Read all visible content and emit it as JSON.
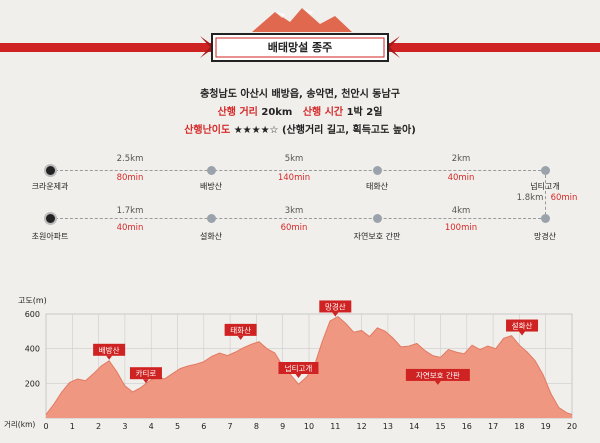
{
  "header": {
    "title": "배태망설 종주",
    "location": "충청남도 아산시 배방읍, 송악면, 천안시 동남구",
    "distance_label": "산행 거리",
    "distance_value": "20km",
    "time_label": "산행 시간",
    "time_value": "1박 2일",
    "difficulty_label": "산행난이도",
    "difficulty_stars": "★★★★☆",
    "difficulty_note": "(산행거리 길고, 획득고도 높아)"
  },
  "routes": [
    {
      "nodes": [
        "크라운제과",
        "배방산",
        "태화산",
        "넙티고개"
      ],
      "distances": [
        "2.5km",
        "5km",
        "2km"
      ],
      "times": [
        "80min",
        "140min",
        "40min"
      ]
    },
    {
      "nodes": [
        "초원아파트",
        "설화산",
        "자연보호 간판",
        "망경산"
      ],
      "distances": [
        "1.7km",
        "3km",
        "4km"
      ],
      "times": [
        "40min",
        "60min",
        "100min"
      ]
    }
  ],
  "connector": {
    "distance": "1.8km",
    "time": "60min"
  },
  "chart_data": {
    "type": "area",
    "ylabel": "고도(m)",
    "xlabel": "거리(km)",
    "xlim": [
      0,
      20
    ],
    "ylim": [
      0,
      600
    ],
    "yticks": [
      200,
      400,
      600
    ],
    "xticks": [
      0,
      1,
      2,
      3,
      4,
      5,
      6,
      7,
      8,
      9,
      10,
      11,
      12,
      13,
      14,
      15,
      16,
      17,
      18,
      19,
      20
    ],
    "grid": true,
    "color": "#ef9780",
    "x": [
      0,
      0.3,
      0.6,
      0.9,
      1.2,
      1.5,
      1.8,
      2.1,
      2.4,
      2.7,
      3.0,
      3.3,
      3.6,
      3.9,
      4.2,
      4.5,
      4.8,
      5.1,
      5.4,
      5.7,
      6.0,
      6.3,
      6.6,
      6.9,
      7.2,
      7.5,
      7.8,
      8.1,
      8.4,
      8.7,
      9.0,
      9.3,
      9.6,
      9.9,
      10.2,
      10.5,
      10.8,
      11.1,
      11.4,
      11.7,
      12.0,
      12.3,
      12.6,
      12.9,
      13.2,
      13.5,
      13.8,
      14.1,
      14.4,
      14.7,
      15.0,
      15.3,
      15.6,
      15.9,
      16.2,
      16.5,
      16.8,
      17.1,
      17.4,
      17.7,
      18.0,
      18.3,
      18.6,
      18.9,
      19.2,
      19.5,
      19.8,
      20.0
    ],
    "y": [
      20,
      80,
      150,
      205,
      225,
      215,
      255,
      300,
      330,
      265,
      185,
      150,
      175,
      210,
      240,
      225,
      255,
      285,
      300,
      310,
      325,
      355,
      375,
      360,
      380,
      405,
      425,
      440,
      400,
      375,
      300,
      250,
      195,
      235,
      300,
      440,
      560,
      585,
      545,
      495,
      505,
      470,
      520,
      500,
      460,
      410,
      415,
      430,
      390,
      360,
      350,
      395,
      380,
      370,
      420,
      395,
      415,
      400,
      460,
      475,
      420,
      380,
      330,
      250,
      140,
      60,
      30,
      20
    ],
    "annotations": [
      {
        "label": "배방산",
        "x": 2.4,
        "y": 330
      },
      {
        "label": "카티로",
        "x": 3.8,
        "y": 195
      },
      {
        "label": "태화산",
        "x": 7.4,
        "y": 445
      },
      {
        "label": "넙티고개",
        "x": 9.6,
        "y": 225
      },
      {
        "label": "망경산",
        "x": 11.0,
        "y": 580
      },
      {
        "label": "자연보호 간판",
        "x": 14.9,
        "y": 185
      },
      {
        "label": "설화산",
        "x": 18.1,
        "y": 470
      }
    ]
  }
}
